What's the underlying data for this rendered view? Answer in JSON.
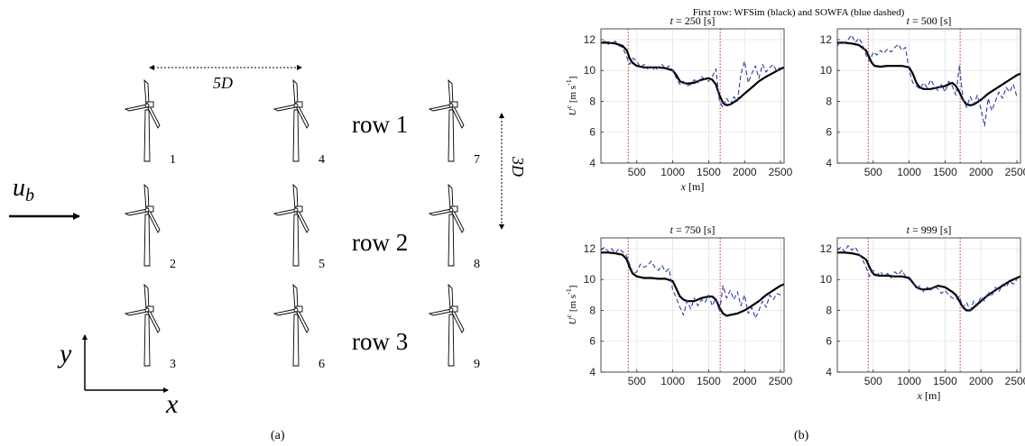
{
  "panel_a": {
    "spacing_x_label": "5D",
    "spacing_y_label": "3D",
    "inflow_label": "u",
    "inflow_sub": "b",
    "axis_x_label": "x",
    "axis_y_label": "y",
    "turbine_numbers": [
      "1",
      "2",
      "3",
      "4",
      "5",
      "6",
      "7",
      "8",
      "9"
    ],
    "row_labels": [
      "row 1",
      "row 2",
      "row 3"
    ],
    "caption": "(a)"
  },
  "panel_b": {
    "caption": "(b)",
    "supertitle": "First row: WFSim (black) and SOWFA (blue dashed)"
  },
  "chart_data": [
    {
      "type": "line",
      "title": "t = 250 [s]",
      "xlabel": "x [m]",
      "ylabel": "U^c [m s^-1]",
      "xlim": [
        0,
        2550
      ],
      "ylim": [
        4,
        12.7
      ],
      "xticks": [
        500,
        1000,
        1500,
        2000,
        2500
      ],
      "yticks": [
        4,
        6,
        8,
        10,
        12
      ],
      "grid": true,
      "vlines": [
        380,
        1660
      ],
      "series": [
        {
          "name": "WFSim",
          "color": "#000000",
          "dash": "solid",
          "x": [
            0,
            100,
            200,
            300,
            360,
            400,
            440,
            500,
            600,
            700,
            800,
            900,
            1000,
            1050,
            1100,
            1150,
            1200,
            1300,
            1400,
            1500,
            1550,
            1600,
            1650,
            1700,
            1750,
            1800,
            1900,
            2000,
            2100,
            2200,
            2300,
            2400,
            2500,
            2550
          ],
          "y": [
            11.8,
            11.8,
            11.75,
            11.6,
            11.3,
            10.8,
            10.5,
            10.3,
            10.2,
            10.2,
            10.2,
            10.15,
            10.0,
            9.7,
            9.3,
            9.2,
            9.15,
            9.2,
            9.4,
            9.5,
            9.4,
            9.1,
            8.4,
            7.9,
            7.75,
            7.8,
            8.1,
            8.5,
            8.9,
            9.3,
            9.6,
            9.85,
            10.1,
            10.2
          ]
        },
        {
          "name": "SOWFA",
          "color": "#2a3f9e",
          "dash": "dashed",
          "x": [
            0,
            50,
            100,
            150,
            200,
            250,
            300,
            350,
            400,
            450,
            500,
            550,
            600,
            650,
            700,
            750,
            800,
            850,
            900,
            950,
            1000,
            1050,
            1100,
            1150,
            1200,
            1250,
            1300,
            1350,
            1400,
            1450,
            1500,
            1550,
            1600,
            1650,
            1700,
            1750,
            1800,
            1850,
            1900,
            1950,
            2000,
            2050,
            2100,
            2150,
            2200,
            2250,
            2300,
            2350,
            2400,
            2450,
            2500
          ],
          "y": [
            11.8,
            11.9,
            11.7,
            11.8,
            11.9,
            11.6,
            11.5,
            11.0,
            10.4,
            10.8,
            10.6,
            10.2,
            10.4,
            10.1,
            10.3,
            10.0,
            10.2,
            10.4,
            10.1,
            10.3,
            10.0,
            9.5,
            9.1,
            9.3,
            9.0,
            9.1,
            9.4,
            9.2,
            9.6,
            9.4,
            9.3,
            9.6,
            10.1,
            8.0,
            7.6,
            8.2,
            7.8,
            8.3,
            8.0,
            9.8,
            10.6,
            9.2,
            9.8,
            10.3,
            9.5,
            10.4,
            9.9,
            10.2,
            10.4,
            9.9,
            10.3
          ]
        }
      ]
    },
    {
      "type": "line",
      "title": "t = 500 [s]",
      "xlabel": "",
      "ylabel": "",
      "xlim": [
        0,
        2550
      ],
      "ylim": [
        4,
        12.7
      ],
      "xticks": [
        500,
        1000,
        1500,
        2000,
        2500
      ],
      "yticks": [
        4,
        6,
        8,
        10,
        12
      ],
      "grid": true,
      "vlines": [
        430,
        1710
      ],
      "series": [
        {
          "name": "WFSim",
          "color": "#000000",
          "dash": "solid",
          "x": [
            0,
            100,
            200,
            300,
            400,
            440,
            480,
            520,
            600,
            700,
            800,
            900,
            1000,
            1050,
            1100,
            1150,
            1200,
            1300,
            1400,
            1500,
            1600,
            1650,
            1700,
            1750,
            1800,
            1850,
            1900,
            2000,
            2100,
            2200,
            2300,
            2400,
            2500,
            2550
          ],
          "y": [
            11.8,
            11.8,
            11.75,
            11.65,
            11.3,
            10.9,
            10.5,
            10.3,
            10.25,
            10.3,
            10.3,
            10.3,
            10.2,
            9.8,
            9.2,
            8.9,
            8.8,
            8.8,
            8.9,
            9.0,
            9.2,
            9.0,
            8.6,
            8.1,
            7.8,
            7.75,
            7.8,
            8.1,
            8.5,
            8.8,
            9.1,
            9.4,
            9.7,
            9.8
          ]
        },
        {
          "name": "SOWFA",
          "color": "#2a3f9e",
          "dash": "dashed",
          "x": [
            0,
            50,
            100,
            150,
            200,
            250,
            300,
            350,
            400,
            450,
            500,
            550,
            600,
            650,
            700,
            750,
            800,
            850,
            900,
            950,
            1000,
            1050,
            1100,
            1150,
            1200,
            1250,
            1300,
            1350,
            1400,
            1450,
            1500,
            1550,
            1600,
            1650,
            1700,
            1750,
            1800,
            1850,
            1900,
            1950,
            2000,
            2050,
            2100,
            2150,
            2200,
            2250,
            2300,
            2350,
            2400,
            2450,
            2500
          ],
          "y": [
            11.6,
            11.9,
            11.8,
            12.0,
            12.3,
            11.8,
            12.1,
            11.7,
            11.0,
            10.6,
            11.2,
            11.0,
            11.3,
            11.1,
            11.4,
            11.2,
            11.5,
            11.7,
            11.3,
            11.5,
            10.0,
            9.2,
            9.0,
            8.8,
            9.2,
            8.9,
            9.4,
            9.0,
            8.7,
            9.1,
            8.6,
            9.3,
            9.0,
            8.4,
            10.3,
            8.2,
            7.6,
            8.3,
            7.8,
            8.4,
            7.5,
            6.4,
            8.2,
            7.4,
            8.0,
            8.6,
            8.2,
            8.9,
            8.6,
            9.1,
            8.3
          ]
        }
      ]
    },
    {
      "type": "line",
      "title": "t = 750 [s]",
      "xlabel": "",
      "ylabel": "U^c [m s^-1]",
      "xlim": [
        0,
        2550
      ],
      "ylim": [
        4,
        12.7
      ],
      "xticks": [
        500,
        1000,
        1500,
        2000,
        2500
      ],
      "yticks": [
        4,
        6,
        8,
        10,
        12
      ],
      "grid": true,
      "vlines": [
        380,
        1660
      ],
      "series": [
        {
          "name": "WFSim",
          "color": "#000000",
          "dash": "solid",
          "x": [
            0,
            100,
            200,
            300,
            360,
            400,
            440,
            500,
            600,
            700,
            800,
            900,
            1000,
            1050,
            1100,
            1150,
            1200,
            1300,
            1400,
            1500,
            1550,
            1600,
            1650,
            1700,
            1750,
            1800,
            1900,
            2000,
            2100,
            2200,
            2300,
            2400,
            2500,
            2550
          ],
          "y": [
            11.75,
            11.75,
            11.7,
            11.6,
            11.3,
            10.8,
            10.4,
            10.2,
            10.1,
            10.1,
            10.05,
            10.05,
            9.9,
            9.4,
            8.9,
            8.7,
            8.6,
            8.6,
            8.8,
            8.9,
            8.9,
            8.7,
            8.2,
            7.8,
            7.65,
            7.7,
            7.8,
            8.0,
            8.3,
            8.6,
            9.0,
            9.3,
            9.6,
            9.7
          ]
        },
        {
          "name": "SOWFA",
          "color": "#2a3f9e",
          "dash": "dashed",
          "x": [
            0,
            50,
            100,
            150,
            200,
            250,
            300,
            350,
            400,
            450,
            500,
            550,
            600,
            650,
            700,
            750,
            800,
            850,
            900,
            950,
            1000,
            1050,
            1100,
            1150,
            1200,
            1250,
            1300,
            1350,
            1400,
            1450,
            1500,
            1550,
            1600,
            1650,
            1700,
            1750,
            1800,
            1850,
            1900,
            1950,
            2000,
            2050,
            2100,
            2150,
            2200,
            2250,
            2300,
            2350,
            2400,
            2450,
            2500
          ],
          "y": [
            11.9,
            12.1,
            11.8,
            12.0,
            11.7,
            12.0,
            11.8,
            11.6,
            11.0,
            10.4,
            10.5,
            11.0,
            10.8,
            10.9,
            11.2,
            10.8,
            10.6,
            10.9,
            10.5,
            10.7,
            9.3,
            8.8,
            8.2,
            7.7,
            8.6,
            8.1,
            8.8,
            8.3,
            8.7,
            8.5,
            9.0,
            8.3,
            8.8,
            7.9,
            9.6,
            8.8,
            9.3,
            8.7,
            9.2,
            8.3,
            9.0,
            7.8,
            8.2,
            7.5,
            8.0,
            8.6,
            8.2,
            9.0,
            8.7,
            9.1,
            9.0
          ]
        }
      ]
    },
    {
      "type": "line",
      "title": "t = 999 [s]",
      "xlabel": "x [m]",
      "ylabel": "",
      "xlim": [
        0,
        2550
      ],
      "ylim": [
        4,
        12.7
      ],
      "xticks": [
        500,
        1000,
        1500,
        2000,
        2500
      ],
      "yticks": [
        4,
        6,
        8,
        10,
        12
      ],
      "grid": true,
      "vlines": [
        430,
        1710
      ],
      "series": [
        {
          "name": "WFSim",
          "color": "#000000",
          "dash": "solid",
          "x": [
            0,
            100,
            200,
            300,
            400,
            440,
            480,
            520,
            600,
            700,
            800,
            900,
            1000,
            1050,
            1100,
            1150,
            1200,
            1300,
            1400,
            1500,
            1600,
            1650,
            1700,
            1750,
            1800,
            1850,
            1900,
            2000,
            2100,
            2200,
            2300,
            2400,
            2500,
            2550
          ],
          "y": [
            11.75,
            11.75,
            11.7,
            11.6,
            11.3,
            10.9,
            10.5,
            10.3,
            10.25,
            10.25,
            10.2,
            10.2,
            10.1,
            9.8,
            9.5,
            9.4,
            9.35,
            9.4,
            9.6,
            9.5,
            9.2,
            9.0,
            8.6,
            8.2,
            8.0,
            8.0,
            8.2,
            8.6,
            9.0,
            9.3,
            9.6,
            9.9,
            10.1,
            10.2
          ]
        },
        {
          "name": "SOWFA",
          "color": "#2a3f9e",
          "dash": "dashed",
          "x": [
            0,
            50,
            100,
            150,
            200,
            250,
            300,
            350,
            400,
            450,
            500,
            550,
            600,
            650,
            700,
            750,
            800,
            850,
            900,
            950,
            1000,
            1050,
            1100,
            1150,
            1200,
            1250,
            1300,
            1350,
            1400,
            1450,
            1500,
            1550,
            1600,
            1650,
            1700,
            1750,
            1800,
            1850,
            1900,
            1950,
            2000,
            2050,
            2100,
            2150,
            2200,
            2250,
            2300,
            2350,
            2400,
            2450,
            2500
          ],
          "y": [
            11.9,
            12.1,
            11.8,
            12.2,
            11.9,
            12.1,
            11.7,
            11.3,
            10.8,
            10.2,
            10.6,
            10.3,
            10.5,
            10.2,
            10.4,
            10.1,
            10.5,
            10.3,
            10.6,
            10.2,
            10.0,
            9.8,
            9.4,
            9.6,
            9.2,
            9.5,
            9.3,
            9.6,
            9.4,
            9.1,
            9.3,
            9.0,
            8.8,
            8.7,
            8.9,
            8.2,
            8.5,
            8.0,
            8.6,
            8.3,
            8.9,
            8.6,
            9.2,
            8.9,
            9.5,
            9.2,
            9.7,
            9.5,
            9.9,
            9.7,
            10.0
          ]
        }
      ]
    }
  ]
}
